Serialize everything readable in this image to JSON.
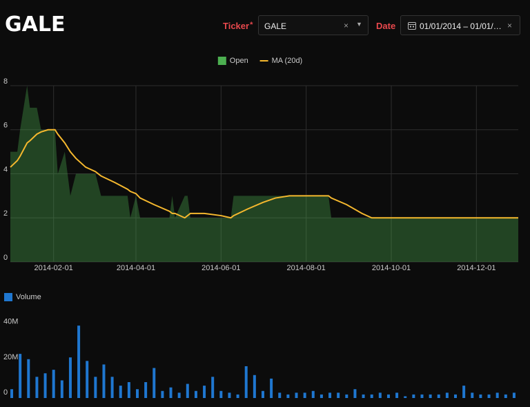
{
  "header": {
    "title": "GALE",
    "ticker": {
      "label": "Ticker",
      "required_mark": "*",
      "value": "GALE"
    },
    "date": {
      "label": "Date",
      "value": "01/01/2014 – 01/01/…"
    }
  },
  "chart_data": [
    {
      "type": "area",
      "legend": "top",
      "x": [
        "2014-01-01",
        "2014-01-06",
        "2014-01-08",
        "2014-01-13",
        "2014-01-15",
        "2014-01-20",
        "2014-01-23",
        "2014-01-28",
        "2014-02-02",
        "2014-02-04",
        "2014-02-09",
        "2014-02-13",
        "2014-02-17",
        "2014-02-24",
        "2014-03-03",
        "2014-03-07",
        "2014-03-17",
        "2014-03-26",
        "2014-03-28",
        "2014-04-01",
        "2014-04-04",
        "2014-04-14",
        "2014-04-25",
        "2014-04-27",
        "2014-04-29",
        "2014-05-06",
        "2014-05-08",
        "2014-05-10",
        "2014-05-20",
        "2014-06-01",
        "2014-06-08",
        "2014-06-10",
        "2014-06-20",
        "2014-07-01",
        "2014-07-10",
        "2014-07-20",
        "2014-08-01",
        "2014-08-17",
        "2014-08-19",
        "2014-08-30",
        "2014-09-10",
        "2014-09-17",
        "2014-10-01",
        "2014-11-01",
        "2014-12-01",
        "2014-12-31"
      ],
      "series": [
        {
          "name": "Open",
          "type": "area",
          "color": "#4caf50",
          "values": [
            5,
            5,
            6,
            8,
            7,
            7,
            6,
            6,
            6,
            4,
            5,
            3,
            4,
            4,
            4,
            3,
            3,
            3,
            2,
            3,
            2,
            2,
            2,
            3,
            2,
            3,
            3,
            2,
            2,
            2,
            2,
            3,
            3,
            3,
            3,
            3,
            3,
            3,
            2,
            2,
            2,
            2,
            2,
            2,
            2,
            2
          ]
        },
        {
          "name": "MA (20d)",
          "type": "line",
          "color": "#f5b82e",
          "values": [
            4.3,
            4.6,
            4.8,
            5.4,
            5.5,
            5.8,
            5.9,
            6.0,
            6.0,
            5.8,
            5.4,
            5.0,
            4.7,
            4.3,
            4.1,
            3.9,
            3.6,
            3.3,
            3.2,
            3.1,
            2.9,
            2.6,
            2.3,
            2.2,
            2.2,
            2.0,
            2.1,
            2.2,
            2.2,
            2.1,
            2.0,
            2.1,
            2.4,
            2.7,
            2.9,
            3.0,
            3.0,
            3.0,
            2.9,
            2.6,
            2.2,
            2.0,
            2.0,
            2.0,
            2.0,
            2.0
          ]
        }
      ],
      "xlim": [
        "2014-01-01",
        "2014-12-31"
      ],
      "xticks": [
        "2014-02-01",
        "2014-04-01",
        "2014-06-01",
        "2014-08-01",
        "2014-10-01",
        "2014-12-01"
      ],
      "ylim": [
        0,
        8
      ],
      "yticks": [
        0,
        2,
        4,
        6,
        8
      ],
      "grid": true
    },
    {
      "type": "bar",
      "legend": "top-left",
      "x": [
        "2014-01-02",
        "2014-01-08",
        "2014-01-14",
        "2014-01-20",
        "2014-01-26",
        "2014-02-01",
        "2014-02-07",
        "2014-02-13",
        "2014-02-19",
        "2014-02-25",
        "2014-03-03",
        "2014-03-09",
        "2014-03-15",
        "2014-03-21",
        "2014-03-27",
        "2014-04-02",
        "2014-04-08",
        "2014-04-14",
        "2014-04-20",
        "2014-04-26",
        "2014-05-02",
        "2014-05-08",
        "2014-05-14",
        "2014-05-20",
        "2014-05-26",
        "2014-06-01",
        "2014-06-07",
        "2014-06-13",
        "2014-06-19",
        "2014-06-25",
        "2014-07-01",
        "2014-07-07",
        "2014-07-13",
        "2014-07-19",
        "2014-07-25",
        "2014-07-31",
        "2014-08-06",
        "2014-08-12",
        "2014-08-18",
        "2014-08-24",
        "2014-08-30",
        "2014-09-05",
        "2014-09-11",
        "2014-09-17",
        "2014-09-23",
        "2014-09-29",
        "2014-10-05",
        "2014-10-11",
        "2014-10-17",
        "2014-10-23",
        "2014-10-29",
        "2014-11-04",
        "2014-11-10",
        "2014-11-16",
        "2014-11-22",
        "2014-11-28",
        "2014-12-04",
        "2014-12-10",
        "2014-12-16",
        "2014-12-22",
        "2014-12-28"
      ],
      "series": [
        {
          "name": "Volume",
          "type": "bar",
          "color": "#1f77d0",
          "values": [
            5000000,
            25000000,
            22000000,
            12000000,
            14000000,
            16000000,
            10000000,
            23000000,
            41000000,
            21000000,
            12000000,
            19000000,
            12000000,
            7000000,
            9000000,
            5000000,
            9000000,
            17000000,
            4000000,
            6000000,
            3000000,
            8000000,
            4000000,
            7000000,
            12000000,
            4000000,
            3000000,
            2000000,
            18000000,
            13000000,
            4000000,
            11000000,
            3000000,
            2000000,
            3000000,
            3000000,
            4000000,
            2000000,
            3000000,
            3000000,
            2000000,
            5000000,
            2000000,
            2000000,
            3000000,
            2000000,
            3000000,
            1000000,
            2000000,
            2000000,
            2000000,
            2000000,
            3000000,
            2000000,
            7000000,
            3000000,
            2000000,
            2000000,
            3000000,
            2000000,
            3000000
          ]
        }
      ],
      "xlim": [
        "2014-01-01",
        "2014-12-31"
      ],
      "ylim": [
        0,
        45000000
      ],
      "yticks": [
        0,
        {
          "value": 20000000,
          "label": "20M"
        },
        {
          "value": 40000000,
          "label": "40M"
        }
      ]
    }
  ]
}
